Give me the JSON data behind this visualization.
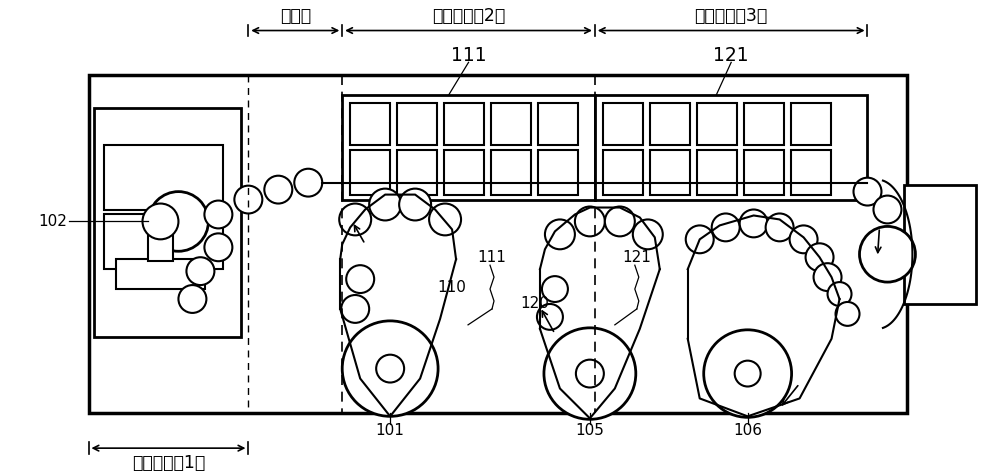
{
  "bg_color": "#ffffff",
  "lc": "#000000",
  "labels": {
    "pre_dry": "预干燥",
    "dry_process": "干燥工序（2）",
    "cross_process": "交联工序（3）",
    "coat_process": "涂装工序（1）",
    "ref_111_top": "111",
    "ref_121_top": "121",
    "ref_111_mid": "111",
    "ref_121_mid": "121",
    "ref_110": "110",
    "ref_120": "120",
    "ref_101": "101",
    "ref_102": "102",
    "ref_105": "105",
    "ref_106": "106"
  },
  "fig_w": 10.0,
  "fig_h": 4.75,
  "dpi": 100
}
